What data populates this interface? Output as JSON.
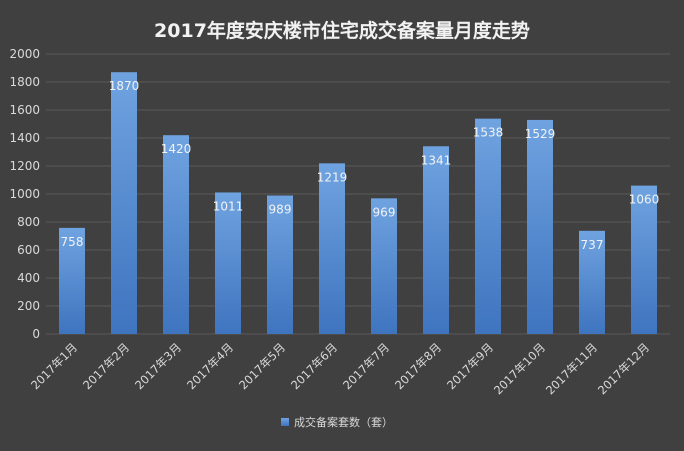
{
  "chart_data": {
    "type": "bar",
    "title": "2017年度安庆楼市住宅成交备案量月度走势",
    "categories": [
      "2017年1月",
      "2017年2月",
      "2017年3月",
      "2017年4月",
      "2017年5月",
      "2017年6月",
      "2017年7月",
      "2017年8月",
      "2017年9月",
      "2017年10月",
      "2017年11月",
      "2017年12月"
    ],
    "series": [
      {
        "name": "成交备案套数（套）",
        "values": [
          758,
          1870,
          1420,
          1011,
          989,
          1219,
          969,
          1341,
          1538,
          1529,
          737,
          1060
        ]
      }
    ],
    "ylim": [
      0,
      2000
    ],
    "yticks": [
      0,
      200,
      400,
      600,
      800,
      1000,
      1200,
      1400,
      1600,
      1800,
      2000
    ],
    "grid": true,
    "legend_position": "bottom",
    "data_labels": true,
    "colors": {
      "bar_top": "#6fa3e0",
      "bar_bottom": "#3f74bf",
      "background": "#404040",
      "grid": "#5a5a5a"
    }
  }
}
